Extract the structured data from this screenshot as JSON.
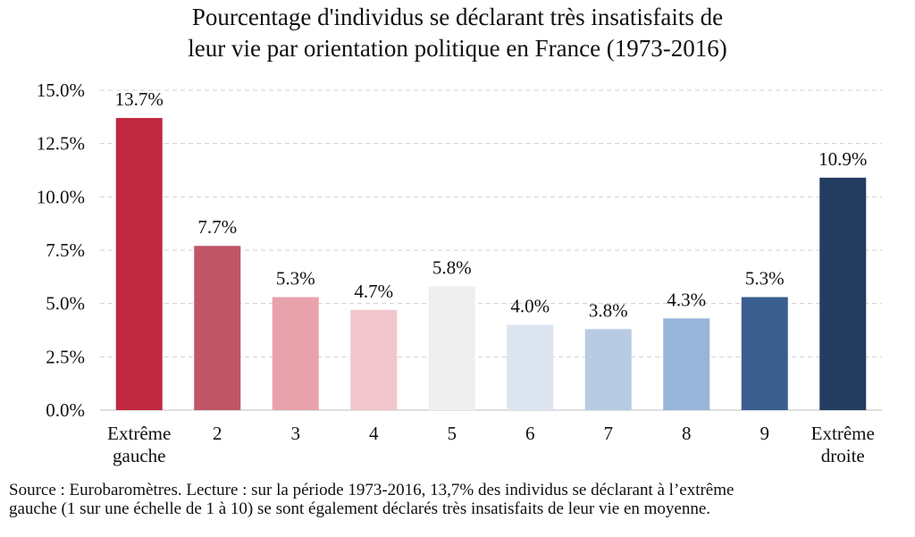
{
  "chart_data": {
    "type": "bar",
    "title": "Pourcentage d'individus se déclarant très insatisfaits de leur vie par orientation politique en France (1973-2016)",
    "title_lines": [
      "Pourcentage d'individus se déclarant très insatisfaits de",
      "leur vie par orientation politique en France (1973-2016)"
    ],
    "xlabel": "",
    "ylabel": "",
    "ylim": [
      0,
      15
    ],
    "yticks": [
      "0.0%",
      "2.5%",
      "5.0%",
      "7.5%",
      "10.0%",
      "12.5%",
      "15.0%"
    ],
    "ytick_values": [
      0,
      2.5,
      5,
      7.5,
      10,
      12.5,
      15
    ],
    "grid": true,
    "categories": [
      [
        "Extrême",
        "gauche"
      ],
      [
        "2"
      ],
      [
        "3"
      ],
      [
        "4"
      ],
      [
        "5"
      ],
      [
        "6"
      ],
      [
        "7"
      ],
      [
        "8"
      ],
      [
        "9"
      ],
      [
        "Extrême",
        "droite"
      ]
    ],
    "values": [
      13.7,
      7.7,
      5.3,
      4.7,
      5.8,
      4.0,
      3.8,
      4.3,
      5.3,
      10.9
    ],
    "value_labels": [
      "13.7%",
      "7.7%",
      "5.3%",
      "4.7%",
      "5.8%",
      "4.0%",
      "3.8%",
      "4.3%",
      "5.3%",
      "10.9%"
    ],
    "colors": [
      "#c0283f",
      "#c05566",
      "#e8a2ab",
      "#f1c6cd",
      "#efefef",
      "#dce5f0",
      "#b7cbe3",
      "#97b5d8",
      "#3a5f8e",
      "#233d60"
    ]
  },
  "source": {
    "lines": [
      "Source : Eurobaromètres. Lecture : sur la période 1973-2016, 13,7% des individus se déclarant à l’extrême",
      "gauche (1 sur une échelle de 1 à 10) se sont également déclarés très insatisfaits de leur vie en moyenne."
    ]
  }
}
